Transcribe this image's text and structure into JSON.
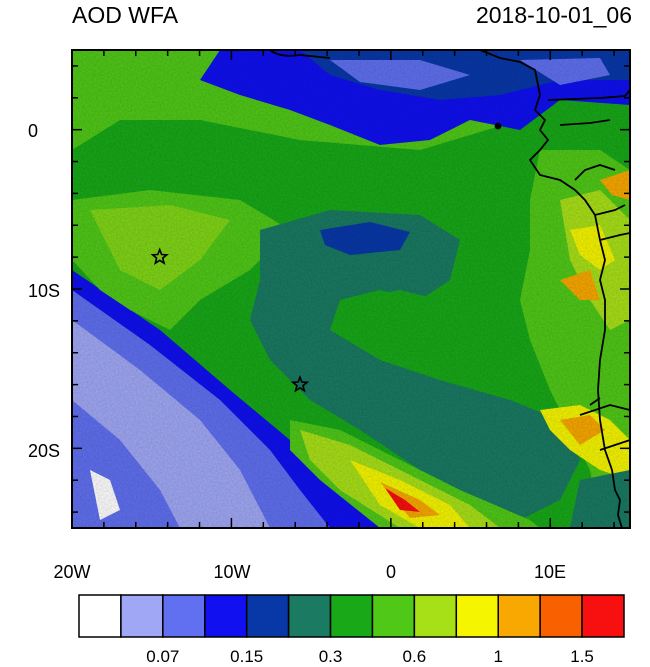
{
  "title_left": "AOD WFA",
  "title_right": "2018-10-01_06",
  "x_ticks": [
    {
      "value": -20,
      "label": "20W"
    },
    {
      "value": -10,
      "label": "10W"
    },
    {
      "value": 0,
      "label": "0"
    },
    {
      "value": 10,
      "label": "10E"
    }
  ],
  "y_ticks": [
    {
      "value": 0,
      "label": "0"
    },
    {
      "value": -10,
      "label": "10S"
    },
    {
      "value": -20,
      "label": "20S"
    }
  ],
  "map_extent": {
    "lon": [
      -20,
      15
    ],
    "lat": [
      -25,
      5
    ]
  },
  "colorbar": {
    "colors": [
      "#ffffff",
      "#a0a8f5",
      "#6070f0",
      "#1010f0",
      "#0838a8",
      "#1a7a62",
      "#18a818",
      "#50c818",
      "#a8e018",
      "#f5f500",
      "#f8a800",
      "#f86000",
      "#f81010"
    ],
    "labels": [
      {
        "after_box": 2,
        "text": "0.07"
      },
      {
        "after_box": 4,
        "text": "0.15"
      },
      {
        "after_box": 6,
        "text": "0.3"
      },
      {
        "after_box": 8,
        "text": "0.6"
      },
      {
        "after_box": 10,
        "text": "1"
      },
      {
        "after_box": 12,
        "text": "1.5"
      }
    ]
  },
  "markers": [
    {
      "name": "star-marker",
      "lon": -14.5,
      "lat": -8.0
    },
    {
      "name": "star-marker",
      "lon": -5.7,
      "lat": -16.0
    }
  ]
}
